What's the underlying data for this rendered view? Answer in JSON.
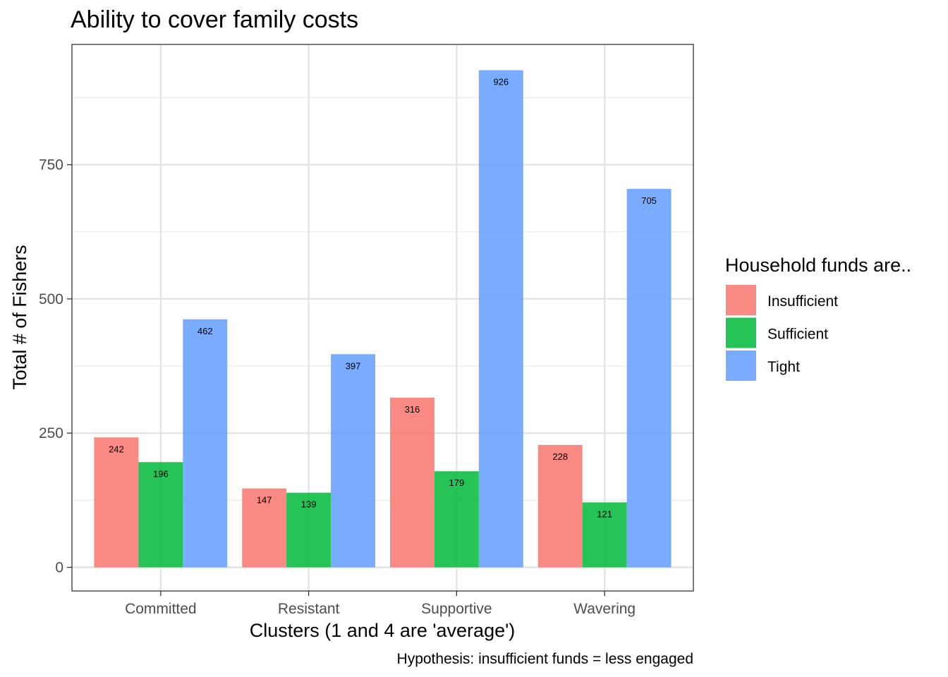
{
  "chart_data": {
    "type": "bar",
    "title": "Ability to cover family costs",
    "xlabel": "Clusters (1 and 4 are 'average')",
    "ylabel": "Total # of Fishers",
    "caption": "Hypothesis: insufficient funds = less engaged",
    "categories": [
      "Committed",
      "Resistant",
      "Supportive",
      "Wavering"
    ],
    "series": [
      {
        "name": "Insufficient",
        "color": "#F8766D",
        "values": [
          242,
          147,
          316,
          228
        ]
      },
      {
        "name": "Sufficient",
        "color": "#00BA38",
        "values": [
          196,
          139,
          179,
          121
        ]
      },
      {
        "name": "Tight",
        "color": "#619CFF",
        "values": [
          462,
          397,
          926,
          705
        ]
      }
    ],
    "ylim": [
      -44,
      974
    ],
    "yticks": [
      0,
      250,
      500,
      750
    ],
    "yticklabels": [
      "0",
      "250",
      "500",
      "750"
    ],
    "grid": true,
    "bar_alpha": 0.85,
    "legend": {
      "title": "Household funds are..",
      "position": "right"
    }
  }
}
